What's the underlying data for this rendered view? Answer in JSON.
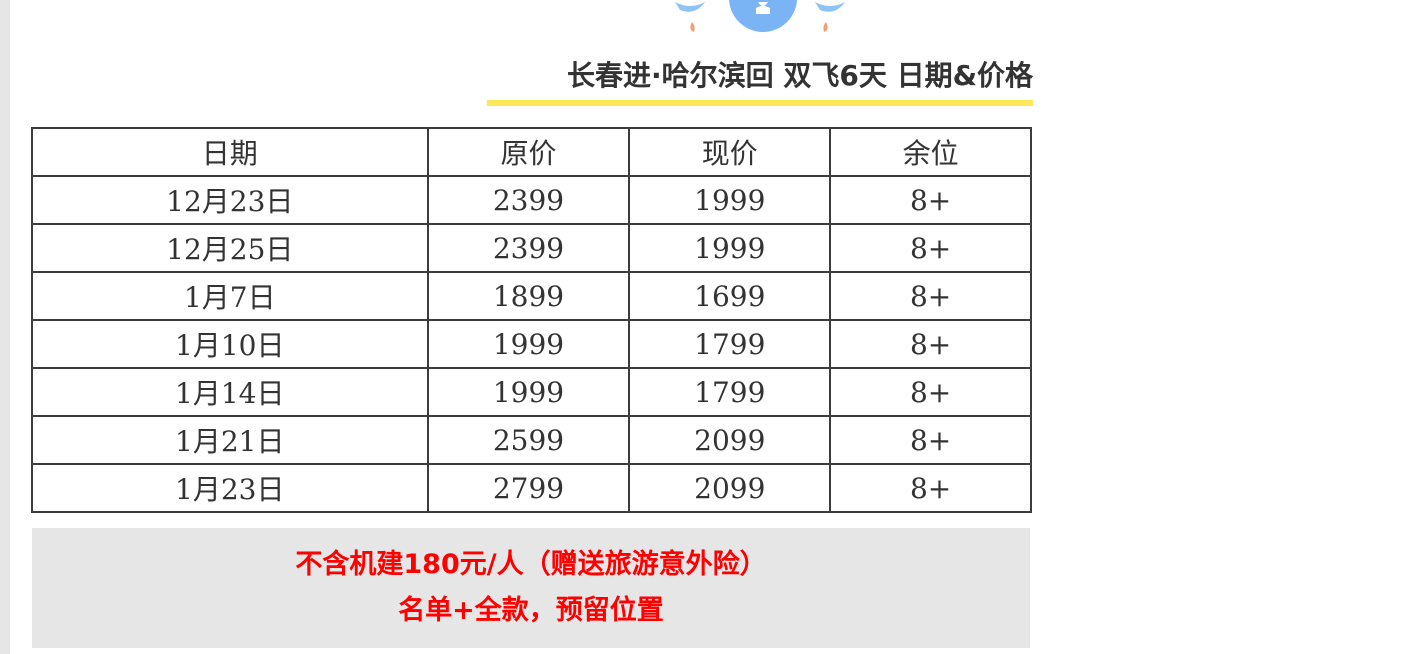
{
  "title": "长春进·哈尔滨回  双飞6天  日期&价格",
  "colors": {
    "accent_underline": "#ffe75a",
    "notice_text": "#ff0000",
    "notice_bg": "#e6e6e6"
  },
  "table": {
    "headers": [
      "日期",
      "原价",
      "现价",
      "余位"
    ],
    "rows": [
      [
        "12月23日",
        "2399",
        "1999",
        "8+"
      ],
      [
        "12月25日",
        "2399",
        "1999",
        "8+"
      ],
      [
        "1月7日",
        "1899",
        "1699",
        "8+"
      ],
      [
        "1月10日",
        "1999",
        "1799",
        "8+"
      ],
      [
        "1月14日",
        "1999",
        "1799",
        "8+"
      ],
      [
        "1月21日",
        "2599",
        "2099",
        "8+"
      ],
      [
        "1月23日",
        "2799",
        "2099",
        "8+"
      ]
    ]
  },
  "notice": [
    "不含机建180元/人（赠送旅游意外险）",
    "名单+全款，预留位置"
  ]
}
